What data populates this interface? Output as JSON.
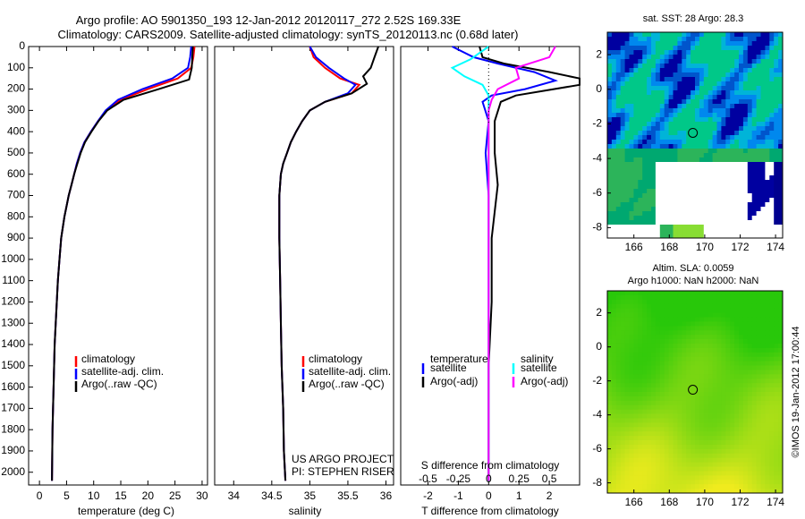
{
  "header": {
    "title_line1": "Argo profile: AO 5901350_193 12-Jan-2012 20120117_272 2.52S 169.33E",
    "title_line2": "Climatology: CARS2009. Satellite-adjusted climatology: synTS_20120113.nc (0.68d later)"
  },
  "chart_data": [
    {
      "id": "temperature",
      "type": "line",
      "xlabel": "temperature (deg C)",
      "ylabel": "",
      "xlim": [
        -2,
        31
      ],
      "ylim": [
        2060,
        0
      ],
      "y_reversed": true,
      "xticks": [
        0,
        5,
        10,
        15,
        20,
        25,
        30
      ],
      "yticks": [
        0,
        100,
        200,
        300,
        400,
        500,
        600,
        700,
        800,
        900,
        1000,
        1100,
        1200,
        1300,
        1400,
        1500,
        1600,
        1700,
        1800,
        1900,
        2000
      ],
      "legend": {
        "placement": "bottom-left",
        "entries": [
          "climatology",
          "satellite-adj. clim.",
          "Argo(..raw -QC)"
        ]
      },
      "series": [
        {
          "name": "climatology",
          "color": "#ff0000",
          "x": [
            28.6,
            28.4,
            28.0,
            25.5,
            20.0,
            15.0,
            12.3,
            10.8,
            9.5,
            8.3,
            7.5,
            6.9,
            6.4,
            5.9,
            5.4,
            5.0,
            4.6,
            4.3,
            4.0,
            3.7,
            3.4,
            3.2,
            3.0,
            2.8,
            2.7,
            2.6,
            2.4,
            2.3
          ],
          "y": [
            0,
            50,
            100,
            150,
            200,
            250,
            300,
            350,
            400,
            450,
            500,
            550,
            600,
            650,
            700,
            750,
            800,
            850,
            900,
            1000,
            1100,
            1200,
            1300,
            1400,
            1500,
            1600,
            1800,
            2040
          ]
        },
        {
          "name": "satellite-adj. clim.",
          "color": "#0000ff",
          "x": [
            28.0,
            27.8,
            27.4,
            24.5,
            19.0,
            14.5,
            12.2,
            10.8,
            9.5,
            8.3,
            7.5,
            6.9,
            6.4,
            5.9,
            5.4,
            5.0,
            4.6,
            4.3,
            4.0,
            3.7,
            3.4,
            3.2,
            3.0,
            2.8,
            2.7,
            2.6,
            2.4,
            2.3
          ],
          "y": [
            0,
            50,
            100,
            150,
            200,
            250,
            300,
            350,
            400,
            450,
            500,
            550,
            600,
            650,
            700,
            750,
            800,
            850,
            900,
            1000,
            1100,
            1200,
            1300,
            1400,
            1500,
            1600,
            1800,
            2040
          ]
        },
        {
          "name": "Argo(..raw -QC)",
          "color": "#000000",
          "x": [
            28.3,
            28.2,
            28.1,
            27.6,
            22.0,
            15.5,
            12.5,
            10.9,
            9.6,
            8.4,
            7.6,
            7.0,
            6.4,
            5.9,
            5.4,
            5.0,
            4.6,
            4.3,
            4.0,
            3.7,
            3.4,
            3.2,
            3.0,
            2.8,
            2.7,
            2.6,
            2.4,
            2.3
          ],
          "y": [
            0,
            50,
            100,
            155,
            200,
            250,
            300,
            350,
            400,
            450,
            500,
            550,
            600,
            650,
            700,
            750,
            800,
            850,
            900,
            1000,
            1100,
            1200,
            1300,
            1400,
            1500,
            1600,
            1800,
            2040
          ]
        }
      ]
    },
    {
      "id": "salinity",
      "type": "line",
      "xlabel": "salinity",
      "xlim": [
        33.75,
        36.1
      ],
      "ylim": [
        2060,
        0
      ],
      "y_reversed": true,
      "xticks": [
        34,
        34.5,
        35,
        35.5,
        36
      ],
      "legend": {
        "placement": "bottom-left",
        "entries": [
          "climatology",
          "satellite-adj. clim.",
          "Argo(..raw -QC)"
        ]
      },
      "annotations": [
        "US ARGO PROJECT",
        "PI: STEPHEN RISER"
      ],
      "series": [
        {
          "name": "climatology",
          "color": "#ff0000",
          "x": [
            35.0,
            35.05,
            35.2,
            35.4,
            35.65,
            35.55,
            35.2,
            35.0,
            34.9,
            34.82,
            34.75,
            34.7,
            34.65,
            34.62,
            34.6,
            34.6,
            34.6,
            34.61,
            34.62,
            34.63,
            34.65,
            34.66,
            34.68
          ],
          "y": [
            0,
            50,
            100,
            150,
            180,
            220,
            260,
            300,
            350,
            400,
            450,
            500,
            550,
            600,
            700,
            800,
            900,
            1100,
            1300,
            1500,
            1700,
            1900,
            2040
          ]
        },
        {
          "name": "satellite-adj. clim.",
          "color": "#0000ff",
          "x": [
            35.0,
            35.08,
            35.25,
            35.45,
            35.6,
            35.5,
            35.2,
            35.0,
            34.9,
            34.82,
            34.75,
            34.7,
            34.65,
            34.62,
            34.6,
            34.6,
            34.6,
            34.61,
            34.62,
            34.63,
            34.65,
            34.66,
            34.68
          ],
          "y": [
            0,
            50,
            100,
            150,
            180,
            220,
            260,
            300,
            350,
            400,
            450,
            500,
            550,
            600,
            700,
            800,
            900,
            1100,
            1300,
            1500,
            1700,
            1900,
            2040
          ]
        },
        {
          "name": "Argo(..raw -QC)",
          "color": "#000000",
          "x": [
            35.9,
            35.85,
            35.8,
            35.7,
            35.75,
            35.55,
            35.2,
            35.0,
            34.9,
            34.82,
            34.75,
            34.7,
            34.65,
            34.62,
            34.6,
            34.6,
            34.6,
            34.61,
            34.62,
            34.63,
            34.65,
            34.66,
            34.68
          ],
          "y": [
            0,
            50,
            100,
            140,
            175,
            220,
            260,
            300,
            350,
            400,
            450,
            500,
            550,
            600,
            700,
            800,
            900,
            1100,
            1300,
            1500,
            1700,
            1900,
            2040
          ]
        }
      ]
    },
    {
      "id": "difference",
      "type": "line",
      "xlabel": "T difference from climatology",
      "top_label": "S difference from climatology",
      "xlim": [
        -2.9,
        3.0
      ],
      "ylim": [
        2060,
        0
      ],
      "y_reversed": true,
      "xticks": [
        -2,
        -1,
        0,
        1,
        2
      ],
      "top_ticks": [
        "-0.5",
        "-0.25",
        "0",
        "0.25",
        "0.5"
      ],
      "top_tick_positions": [
        -2,
        -1,
        0,
        1,
        2
      ],
      "legend": {
        "placement": "bottom",
        "headers": [
          "temperature",
          "salinity"
        ],
        "entries": [
          "satellite",
          "Argo(-adj)",
          "satellite",
          "Argo(-adj)"
        ]
      },
      "series": [
        {
          "name": "satellite",
          "group": "temperature",
          "color": "#0000ff",
          "x": [
            -1.2,
            -0.5,
            0.3,
            1.5,
            2.2,
            1.2,
            0.1,
            -0.2,
            0.0,
            -0.1,
            0.0,
            0.0,
            0.0,
            0.0,
            0.0,
            0.0
          ],
          "y": [
            0,
            50,
            80,
            120,
            160,
            200,
            230,
            260,
            350,
            500,
            700,
            900,
            1200,
            1500,
            1800,
            2040
          ]
        },
        {
          "name": "Argo(-adj)",
          "group": "temperature",
          "color": "#000000",
          "x": [
            -0.3,
            -0.2,
            0.5,
            2.0,
            3.0,
            3.0,
            0.9,
            0.4,
            0.2,
            0.2,
            0.3,
            0.1,
            0.1,
            0.0,
            0.0,
            0.0
          ],
          "y": [
            0,
            50,
            80,
            120,
            150,
            180,
            230,
            260,
            350,
            500,
            650,
            900,
            1200,
            1500,
            1800,
            2040
          ]
        },
        {
          "name": "satellite",
          "group": "salinity",
          "color": "#00ffff",
          "x": [
            0.0,
            -0.6,
            -1.2,
            -0.8,
            -0.2,
            0.0,
            0.0,
            0.0,
            0.0,
            0.0,
            0.0,
            0.0,
            0.0
          ],
          "y": [
            0,
            60,
            100,
            140,
            180,
            230,
            300,
            500,
            800,
            1100,
            1400,
            1700,
            2040
          ]
        },
        {
          "name": "Argo(-adj)",
          "group": "salinity",
          "color": "#ff00ff",
          "x": [
            2.2,
            2.0,
            0.9,
            1.0,
            0.3,
            0.1,
            0.0,
            0.0,
            0.0,
            0.0,
            0.0,
            0.0
          ],
          "y": [
            0,
            50,
            100,
            150,
            200,
            250,
            300,
            500,
            900,
            1300,
            1700,
            2040
          ]
        }
      ]
    },
    {
      "id": "sst_map",
      "type": "heatmap",
      "title": "sat. SST: 28 Argo: 28.3",
      "xlim": [
        164.5,
        174.4
      ],
      "ylim": [
        -8.6,
        3.3
      ],
      "xticks": [
        166,
        168,
        170,
        172,
        174
      ],
      "yticks": [
        2,
        0,
        -2,
        -4,
        -6,
        -8
      ],
      "marker": {
        "lon": 169.33,
        "lat": -2.52
      }
    },
    {
      "id": "sla_map",
      "type": "heatmap",
      "title_line1": "Altim. SLA: 0.0059",
      "title_line2": "Argo h1000: NaN h2000: NaN",
      "xlim": [
        164.5,
        174.4
      ],
      "ylim": [
        -8.6,
        3.3
      ],
      "xticks": [
        166,
        168,
        170,
        172,
        174
      ],
      "yticks": [
        2,
        0,
        -2,
        -4,
        -6,
        -8
      ],
      "marker": {
        "lon": 169.33,
        "lat": -2.52
      }
    }
  ],
  "footer": {
    "credit": "©IMOS 19-Jan-2012 17:00:44"
  }
}
